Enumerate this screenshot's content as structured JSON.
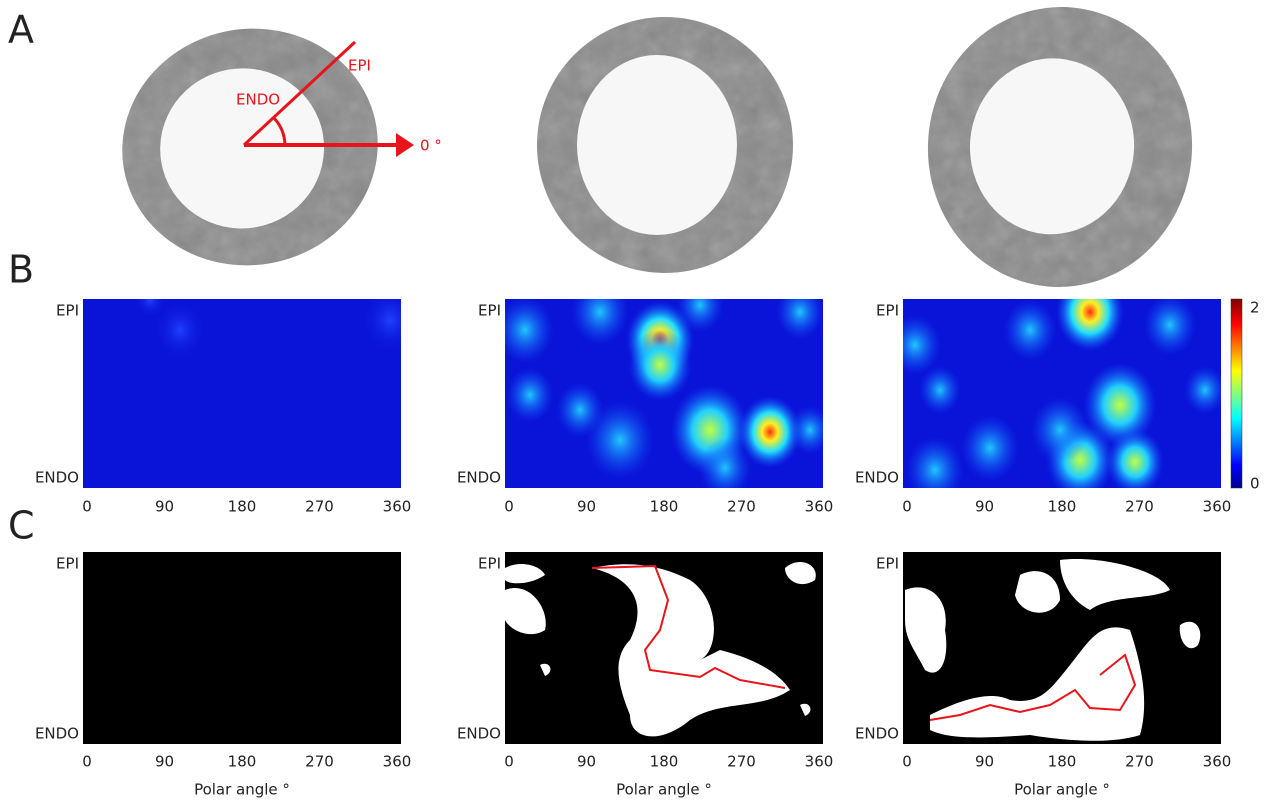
{
  "panels": [
    "A",
    "B",
    "C"
  ],
  "annotation": {
    "epi": "EPI",
    "endo": "ENDO",
    "zero": "0 °"
  },
  "axis": {
    "top": "EPI",
    "bottom": "ENDO",
    "xticks": [
      "0",
      "90",
      "180",
      "270",
      "360"
    ],
    "xlabel": "Polar angle °"
  },
  "colorbar": {
    "max": "2",
    "min": "0"
  }
}
